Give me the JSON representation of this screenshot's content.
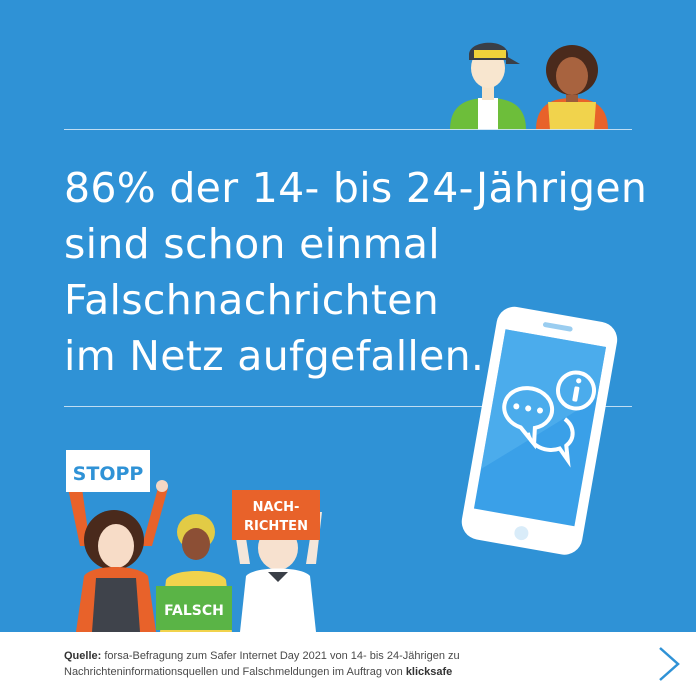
{
  "headline": {
    "line1": "86% der 14- bis 24-Jährigen",
    "line2": "sind schon einmal",
    "line3": "Falschnachrichten",
    "line4": "im Netz aufgefallen."
  },
  "signs": {
    "stopp": "STOPP",
    "falsch": "FALSCH",
    "nachrichten_line1": "NACH-",
    "nachrichten_line2": "RICHTEN"
  },
  "footer": {
    "source_label": "Quelle:",
    "source_text_1": "forsa-Befragung zum Safer Internet Day 2021 von 14- bis 24-Jährigen zu",
    "source_text_2": "Nachrichteninformationsquellen und Falschmeldungen im Auftrag von",
    "brand": "klicksafe"
  },
  "icons": {
    "next": "chevron-right-icon",
    "phone": "smartphone-icon",
    "chat": "chat-bubbles-icon",
    "info": "info-icon"
  },
  "colors": {
    "background": "#2F92D6",
    "sign_orange": "#E8622A",
    "sign_green": "#5AB446",
    "phone_screen": "#3AA0E8",
    "footer_bg": "#FFFFFF"
  }
}
